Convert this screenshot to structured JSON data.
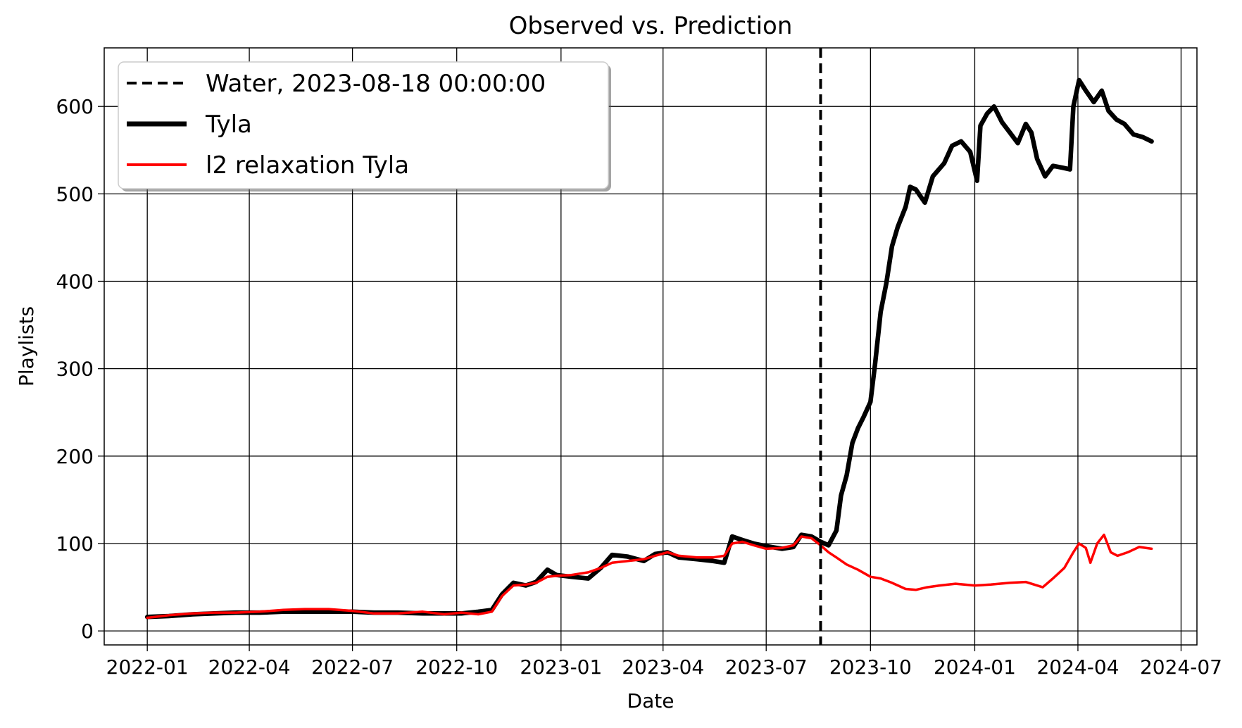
{
  "chart_data": {
    "type": "line",
    "title": "Observed vs. Prediction",
    "xlabel": "Date",
    "ylabel": "Playlists",
    "xlim": [
      "2021-11-24",
      "2024-07-15"
    ],
    "ylim": [
      -16,
      667
    ],
    "x_ticks": [
      "2022-01",
      "2022-04",
      "2022-07",
      "2022-10",
      "2023-01",
      "2023-04",
      "2023-07",
      "2023-10",
      "2024-01",
      "2024-04",
      "2024-07"
    ],
    "y_ticks": [
      0,
      100,
      200,
      300,
      400,
      500,
      600
    ],
    "grid": true,
    "legend_position": "upper-left",
    "vertical_line": {
      "label": "Water, 2023-08-18 00:00:00",
      "x": "2023-08-18",
      "style": "dashed",
      "color": "#000000"
    },
    "series": [
      {
        "name": "Tyla",
        "color": "#000000",
        "style": "solid-thick",
        "points": [
          [
            "2022-01-01",
            16
          ],
          [
            "2022-01-20",
            17
          ],
          [
            "2022-02-10",
            19
          ],
          [
            "2022-03-01",
            20
          ],
          [
            "2022-03-20",
            21
          ],
          [
            "2022-04-10",
            21
          ],
          [
            "2022-05-01",
            22
          ],
          [
            "2022-05-20",
            22
          ],
          [
            "2022-06-10",
            22
          ],
          [
            "2022-07-01",
            22
          ],
          [
            "2022-07-20",
            21
          ],
          [
            "2022-08-10",
            21
          ],
          [
            "2022-09-01",
            20
          ],
          [
            "2022-09-20",
            20
          ],
          [
            "2022-10-05",
            20
          ],
          [
            "2022-10-20",
            22
          ],
          [
            "2022-11-01",
            24
          ],
          [
            "2022-11-10",
            42
          ],
          [
            "2022-11-20",
            55
          ],
          [
            "2022-12-01",
            52
          ],
          [
            "2022-12-10",
            56
          ],
          [
            "2022-12-20",
            70
          ],
          [
            "2022-12-28",
            64
          ],
          [
            "2023-01-10",
            62
          ],
          [
            "2023-01-25",
            60
          ],
          [
            "2023-02-05",
            72
          ],
          [
            "2023-02-15",
            87
          ],
          [
            "2023-03-01",
            85
          ],
          [
            "2023-03-15",
            80
          ],
          [
            "2023-03-25",
            88
          ],
          [
            "2023-04-05",
            90
          ],
          [
            "2023-04-15",
            84
          ],
          [
            "2023-05-01",
            82
          ],
          [
            "2023-05-15",
            80
          ],
          [
            "2023-05-25",
            78
          ],
          [
            "2023-06-01",
            108
          ],
          [
            "2023-06-10",
            104
          ],
          [
            "2023-06-20",
            100
          ],
          [
            "2023-07-01",
            97
          ],
          [
            "2023-07-15",
            94
          ],
          [
            "2023-07-25",
            96
          ],
          [
            "2023-08-01",
            110
          ],
          [
            "2023-08-10",
            108
          ],
          [
            "2023-08-18",
            102
          ],
          [
            "2023-08-25",
            98
          ],
          [
            "2023-09-01",
            115
          ],
          [
            "2023-09-05",
            155
          ],
          [
            "2023-09-10",
            178
          ],
          [
            "2023-09-15",
            215
          ],
          [
            "2023-09-20",
            232
          ],
          [
            "2023-09-25",
            245
          ],
          [
            "2023-10-01",
            262
          ],
          [
            "2023-10-05",
            305
          ],
          [
            "2023-10-10",
            365
          ],
          [
            "2023-10-15",
            398
          ],
          [
            "2023-10-20",
            440
          ],
          [
            "2023-10-25",
            462
          ],
          [
            "2023-11-01",
            485
          ],
          [
            "2023-11-05",
            508
          ],
          [
            "2023-11-10",
            505
          ],
          [
            "2023-11-18",
            490
          ],
          [
            "2023-11-25",
            520
          ],
          [
            "2023-12-05",
            535
          ],
          [
            "2023-12-12",
            555
          ],
          [
            "2023-12-20",
            560
          ],
          [
            "2023-12-28",
            548
          ],
          [
            "2024-01-03",
            515
          ],
          [
            "2024-01-06",
            578
          ],
          [
            "2024-01-12",
            592
          ],
          [
            "2024-01-18",
            600
          ],
          [
            "2024-01-25",
            582
          ],
          [
            "2024-02-01",
            570
          ],
          [
            "2024-02-08",
            558
          ],
          [
            "2024-02-15",
            580
          ],
          [
            "2024-02-20",
            570
          ],
          [
            "2024-02-25",
            540
          ],
          [
            "2024-03-03",
            520
          ],
          [
            "2024-03-10",
            532
          ],
          [
            "2024-03-18",
            530
          ],
          [
            "2024-03-25",
            528
          ],
          [
            "2024-03-28",
            600
          ],
          [
            "2024-04-02",
            630
          ],
          [
            "2024-04-08",
            618
          ],
          [
            "2024-04-15",
            605
          ],
          [
            "2024-04-22",
            618
          ],
          [
            "2024-04-28",
            595
          ],
          [
            "2024-05-05",
            585
          ],
          [
            "2024-05-12",
            580
          ],
          [
            "2024-05-20",
            568
          ],
          [
            "2024-05-28",
            565
          ],
          [
            "2024-06-05",
            560
          ]
        ]
      },
      {
        "name": "l2 relaxation Tyla",
        "color": "#ff0000",
        "style": "solid",
        "points": [
          [
            "2022-01-01",
            15
          ],
          [
            "2022-01-20",
            18
          ],
          [
            "2022-02-10",
            20
          ],
          [
            "2022-03-01",
            21
          ],
          [
            "2022-03-20",
            21
          ],
          [
            "2022-04-10",
            22
          ],
          [
            "2022-05-01",
            24
          ],
          [
            "2022-05-20",
            25
          ],
          [
            "2022-06-10",
            25
          ],
          [
            "2022-07-01",
            23
          ],
          [
            "2022-07-20",
            20
          ],
          [
            "2022-08-10",
            20
          ],
          [
            "2022-09-01",
            22
          ],
          [
            "2022-09-20",
            19
          ],
          [
            "2022-10-05",
            21
          ],
          [
            "2022-10-20",
            19
          ],
          [
            "2022-11-01",
            22
          ],
          [
            "2022-11-10",
            40
          ],
          [
            "2022-11-20",
            52
          ],
          [
            "2022-12-01",
            53
          ],
          [
            "2022-12-10",
            55
          ],
          [
            "2022-12-20",
            62
          ],
          [
            "2022-12-28",
            63
          ],
          [
            "2023-01-10",
            64
          ],
          [
            "2023-01-25",
            67
          ],
          [
            "2023-02-05",
            72
          ],
          [
            "2023-02-15",
            78
          ],
          [
            "2023-03-01",
            80
          ],
          [
            "2023-03-15",
            82
          ],
          [
            "2023-03-25",
            86
          ],
          [
            "2023-04-05",
            90
          ],
          [
            "2023-04-15",
            86
          ],
          [
            "2023-05-01",
            84
          ],
          [
            "2023-05-15",
            84
          ],
          [
            "2023-05-25",
            86
          ],
          [
            "2023-06-01",
            100
          ],
          [
            "2023-06-10",
            102
          ],
          [
            "2023-06-20",
            98
          ],
          [
            "2023-07-01",
            94
          ],
          [
            "2023-07-15",
            95
          ],
          [
            "2023-07-25",
            98
          ],
          [
            "2023-08-01",
            108
          ],
          [
            "2023-08-10",
            106
          ],
          [
            "2023-08-18",
            98
          ],
          [
            "2023-08-25",
            90
          ],
          [
            "2023-09-01",
            84
          ],
          [
            "2023-09-10",
            76
          ],
          [
            "2023-09-20",
            70
          ],
          [
            "2023-10-01",
            62
          ],
          [
            "2023-10-10",
            60
          ],
          [
            "2023-10-20",
            55
          ],
          [
            "2023-11-01",
            48
          ],
          [
            "2023-11-10",
            47
          ],
          [
            "2023-11-20",
            50
          ],
          [
            "2023-12-01",
            52
          ],
          [
            "2023-12-15",
            54
          ],
          [
            "2024-01-01",
            52
          ],
          [
            "2024-01-15",
            53
          ],
          [
            "2024-02-01",
            55
          ],
          [
            "2024-02-15",
            56
          ],
          [
            "2024-03-01",
            50
          ],
          [
            "2024-03-10",
            60
          ],
          [
            "2024-03-20",
            72
          ],
          [
            "2024-03-28",
            90
          ],
          [
            "2024-04-02",
            100
          ],
          [
            "2024-04-08",
            95
          ],
          [
            "2024-04-12",
            78
          ],
          [
            "2024-04-18",
            100
          ],
          [
            "2024-04-24",
            110
          ],
          [
            "2024-04-30",
            90
          ],
          [
            "2024-05-06",
            86
          ],
          [
            "2024-05-15",
            90
          ],
          [
            "2024-05-25",
            96
          ],
          [
            "2024-06-05",
            94
          ]
        ]
      }
    ]
  }
}
